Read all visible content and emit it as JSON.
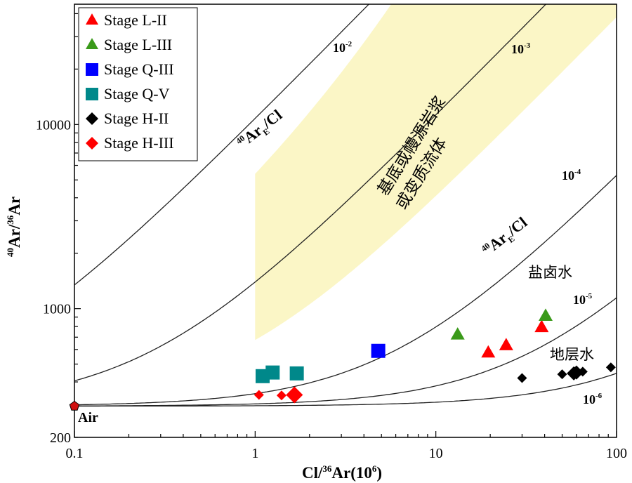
{
  "chart_data": {
    "type": "scatter",
    "title": "",
    "xlabel": {
      "pre_sup": "",
      "main": "Cl/",
      "sup1": "36",
      "main2": "Ar",
      "unit": "(10",
      "unit_sup": "6",
      "unit_end": ")"
    },
    "ylabel": {
      "sup1": "40",
      "main1": "Ar/",
      "sup2": "36",
      "main2": "Ar"
    },
    "x_scale": "log",
    "y_scale": "log",
    "xlim": [
      0.1,
      100
    ],
    "ylim": [
      200,
      45000
    ],
    "x_ticks": [
      {
        "v": 0.1,
        "label": "0.1"
      },
      {
        "v": 1,
        "label": "1"
      },
      {
        "v": 10,
        "label": "10"
      },
      {
        "v": 100,
        "label": "100"
      }
    ],
    "y_ticks": [
      {
        "v": 200,
        "label": "200"
      },
      {
        "v": 1000,
        "label": "1000"
      },
      {
        "v": 10000,
        "label": "10000"
      }
    ],
    "grid": false,
    "legend_position": "top-left",
    "series": [
      {
        "name": "Stage L-II",
        "marker": "triangle",
        "color": "#ff0000",
        "points": [
          [
            19.5,
            575
          ],
          [
            24.5,
            630
          ],
          [
            38.5,
            790
          ]
        ]
      },
      {
        "name": "Stage L-III",
        "marker": "triangle",
        "color": "#3a9a1a",
        "points": [
          [
            13.2,
            720
          ],
          [
            40.5,
            910
          ]
        ]
      },
      {
        "name": "Stage Q-III",
        "marker": "square",
        "color": "#0000ff",
        "points": [
          [
            4.8,
            590
          ]
        ]
      },
      {
        "name": "Stage Q-V",
        "marker": "square",
        "color": "#00888a",
        "points": [
          [
            1.1,
            430
          ],
          [
            1.25,
            450
          ],
          [
            1.7,
            445
          ]
        ]
      },
      {
        "name": "Stage H-II",
        "marker": "diamond",
        "color": "#000000",
        "points": [
          [
            30,
            420
          ],
          [
            50,
            440
          ],
          [
            58,
            445
          ],
          [
            60,
            450
          ],
          [
            65,
            455
          ],
          [
            93,
            480
          ]
        ]
      },
      {
        "name": "Stage H-III",
        "marker": "diamond",
        "color": "#ff0000",
        "points": [
          [
            1.05,
            340
          ],
          [
            1.4,
            338
          ],
          [
            1.65,
            340
          ]
        ]
      }
    ],
    "air_point": {
      "label": "Air",
      "x": 0.1,
      "y": 295.5,
      "color": "#d01010"
    },
    "reference_curves": [
      {
        "label": "10",
        "exp": "-2",
        "k": 0.01
      },
      {
        "label": "10",
        "exp": "-3",
        "k": 0.001
      },
      {
        "label": "10",
        "exp": "-4",
        "k": 0.0001
      },
      {
        "label": "10",
        "exp": "-5",
        "k": 1e-05
      },
      {
        "label": "10",
        "exp": "-6",
        "k": 1e-06
      }
    ],
    "annotations": {
      "ratio_label_upper": {
        "sup": "40",
        "main": "Ar",
        "sub": "E",
        "tail": "/Cl"
      },
      "ratio_label_lower": {
        "sup": "40",
        "main": "Ar",
        "sub": "E",
        "tail": "/Cl"
      },
      "field_basement_line1": "基底或幔源岩浆",
      "field_basement_line2": "或变质流体",
      "field_brine": "盐卤水",
      "field_formation_water": "地层水"
    },
    "field_color": "#fbf6c6"
  }
}
